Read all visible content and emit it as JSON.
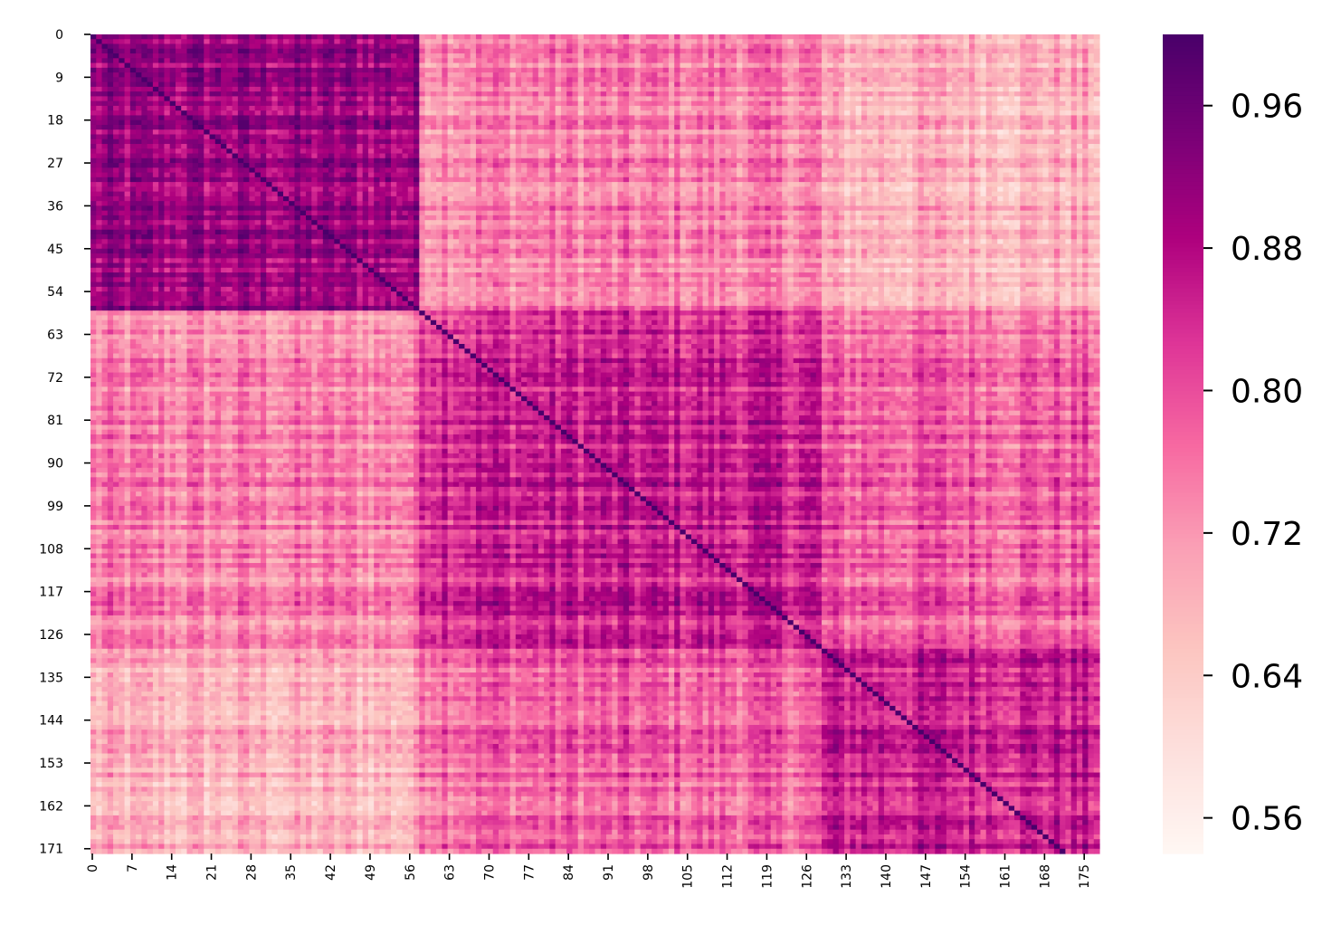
{
  "chart_data": {
    "type": "heatmap",
    "title": "",
    "xlabel": "",
    "ylabel": "",
    "colormap": "RdPu",
    "matrix_size": 178,
    "rows_range": [
      0,
      171
    ],
    "cols_range": [
      0,
      177
    ],
    "value_range": [
      0.54,
      1.0
    ],
    "diagonal_value": 1.0,
    "blocks": [
      {
        "start": 0,
        "end": 58,
        "mean": 0.9
      },
      {
        "start": 58,
        "end": 129,
        "mean": 0.85
      },
      {
        "start": 129,
        "end": 178,
        "mean": 0.855
      }
    ],
    "cross_block_mean": [
      [
        0.9,
        0.74,
        0.68
      ],
      [
        0.74,
        0.85,
        0.78
      ],
      [
        0.68,
        0.78,
        0.855
      ]
    ],
    "x_tick_labels": [
      "0",
      "7",
      "14",
      "21",
      "28",
      "35",
      "42",
      "49",
      "56",
      "63",
      "70",
      "77",
      "84",
      "91",
      "98",
      "105",
      "112",
      "119",
      "126",
      "133",
      "140",
      "147",
      "154",
      "161",
      "168",
      "175"
    ],
    "y_tick_labels": [
      "0",
      "9",
      "18",
      "27",
      "36",
      "45",
      "54",
      "63",
      "72",
      "81",
      "90",
      "99",
      "108",
      "117",
      "126",
      "135",
      "144",
      "153",
      "162",
      "171"
    ],
    "colorbar": {
      "ticks": [
        "0.56",
        "0.64",
        "0.72",
        "0.80",
        "0.88",
        "0.96"
      ],
      "tick_values": [
        0.56,
        0.64,
        0.72,
        0.8,
        0.88,
        0.96
      ]
    }
  }
}
